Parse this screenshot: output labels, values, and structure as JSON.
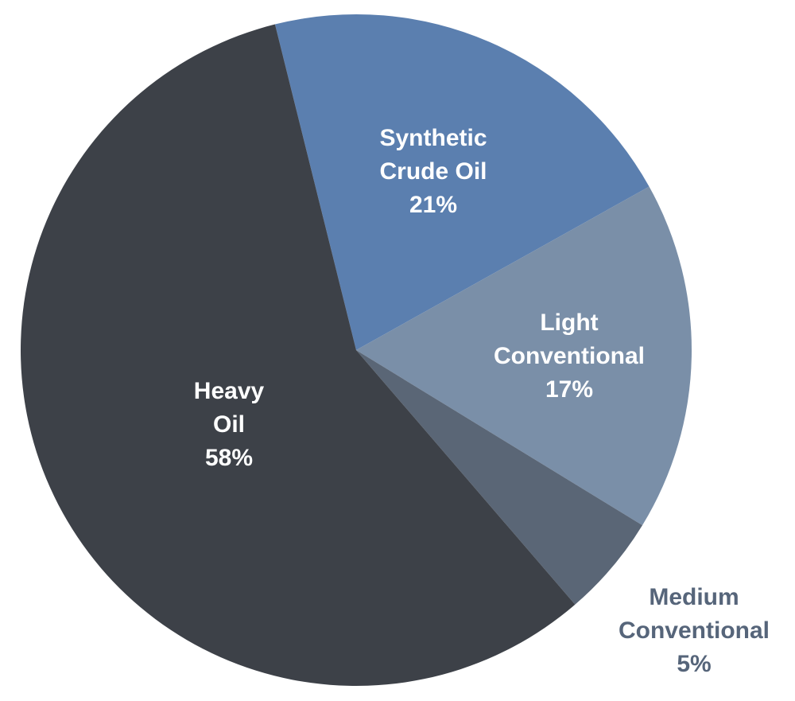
{
  "chart_data": {
    "type": "pie",
    "title": "",
    "start_angle_deg": -14,
    "direction": "clockwise",
    "slices": [
      {
        "label_lines": [
          "Synthetic",
          "Crude Oil"
        ],
        "value_label": "21%",
        "value": 21,
        "color": "#5b7faf",
        "label_color": "#ffffff"
      },
      {
        "label_lines": [
          "Light",
          "Conventional"
        ],
        "value_label": "17%",
        "value": 17,
        "color": "#7a8fa8",
        "label_color": "#ffffff"
      },
      {
        "label_lines": [
          "Medium",
          "Conventional"
        ],
        "value_label": "5%",
        "value": 5,
        "color": "#5a6676",
        "label_color": "#56657a"
      },
      {
        "label_lines": [
          "Heavy",
          "Oil"
        ],
        "value_label": "58%",
        "value": 58,
        "color": "#3d4148",
        "label_color": "#ffffff"
      }
    ]
  }
}
